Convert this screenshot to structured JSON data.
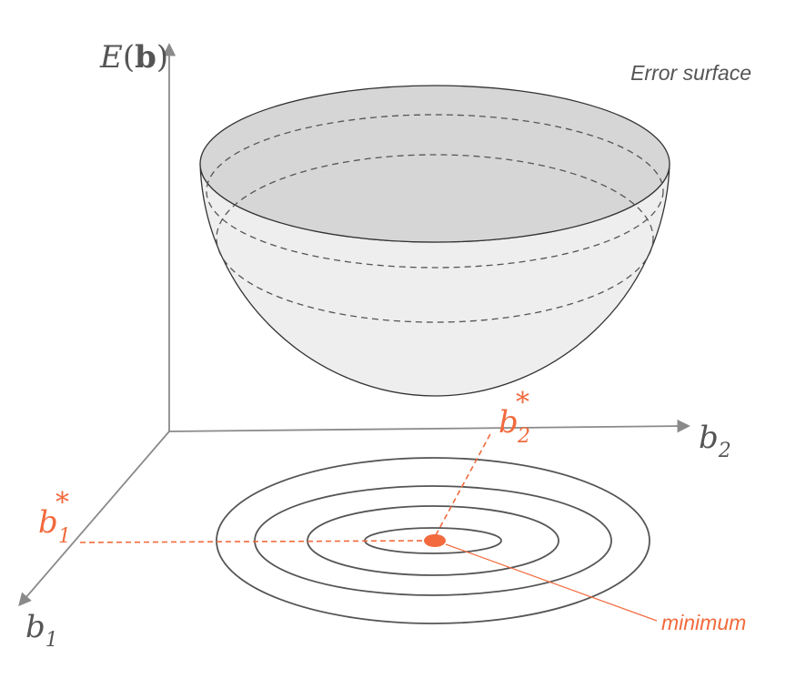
{
  "diagram": {
    "surface_label": "Error surface",
    "z_axis": {
      "symbol": "E",
      "open": "(",
      "arg": "b",
      "close": ")"
    },
    "x_axis": {
      "symbol": "b",
      "sub": "2"
    },
    "y_axis": {
      "symbol": "b",
      "sub": "1"
    },
    "b2_star": {
      "symbol": "b",
      "sup": "*",
      "sub": "2"
    },
    "b1_star": {
      "symbol": "b",
      "sup": "*",
      "sub": "1"
    },
    "minimum_label": "minimum",
    "colors": {
      "axis": "#8a8a8a",
      "surface_fill": "#eeeeee",
      "surface_top": "#d6d6d6",
      "outline": "#333333",
      "contour": "#555555",
      "accent": "#f26a3d"
    }
  }
}
